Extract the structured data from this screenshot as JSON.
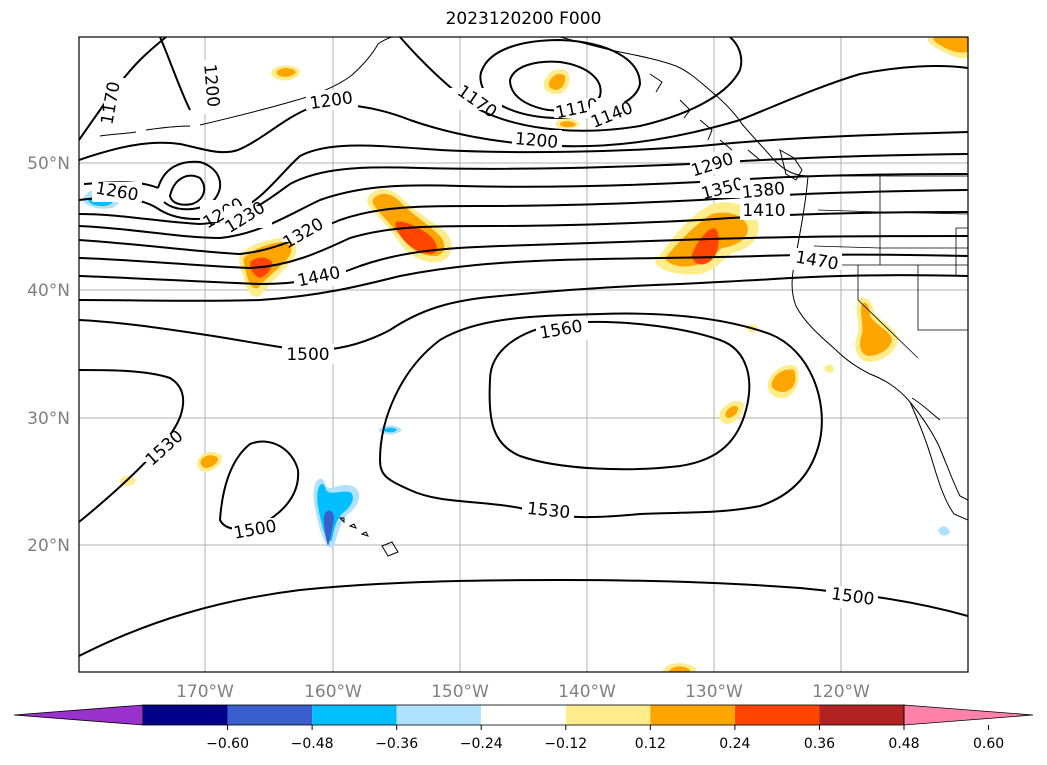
{
  "title": "2023120200 F000",
  "map": {
    "latitude_labels": [
      "50°N",
      "40°N",
      "30°N",
      "20°N"
    ],
    "longitude_labels": [
      "170°W",
      "160°W",
      "150°W",
      "140°W",
      "130°W",
      "120°W"
    ],
    "gridlines": true,
    "coastlines": true,
    "state_borders": true
  },
  "contours": {
    "color": "#000000",
    "labels": [
      "1170",
      "1200",
      "1200",
      "1170",
      "1110",
      "1140",
      "1200",
      "1260",
      "1200",
      "1230",
      "1320",
      "1290",
      "1350",
      "1380",
      "1410",
      "1440",
      "1470",
      "1500",
      "1560",
      "1530",
      "1500",
      "1530",
      "1500"
    ]
  },
  "colorbar": {
    "ticks": [
      "−0.60",
      "−0.48",
      "−0.36",
      "−0.24",
      "−0.12",
      "0.12",
      "0.24",
      "0.36",
      "0.48",
      "0.60"
    ],
    "colors": [
      "#9932cc",
      "#00008b",
      "#3a5fcd",
      "#00bfff",
      "#b0e2ff",
      "#ffffff",
      "#ffec8b",
      "#ffa500",
      "#ff4500",
      "#b22222",
      "#ff82ab"
    ],
    "extend": "both"
  },
  "fill_colors": {
    "weak_pos": "#ffec8b",
    "mid_pos": "#ffa500",
    "strong_pos": "#ff4500",
    "weak_neg": "#b0e2ff",
    "mid_neg": "#00bfff",
    "strong_neg": "#3a5fcd"
  }
}
